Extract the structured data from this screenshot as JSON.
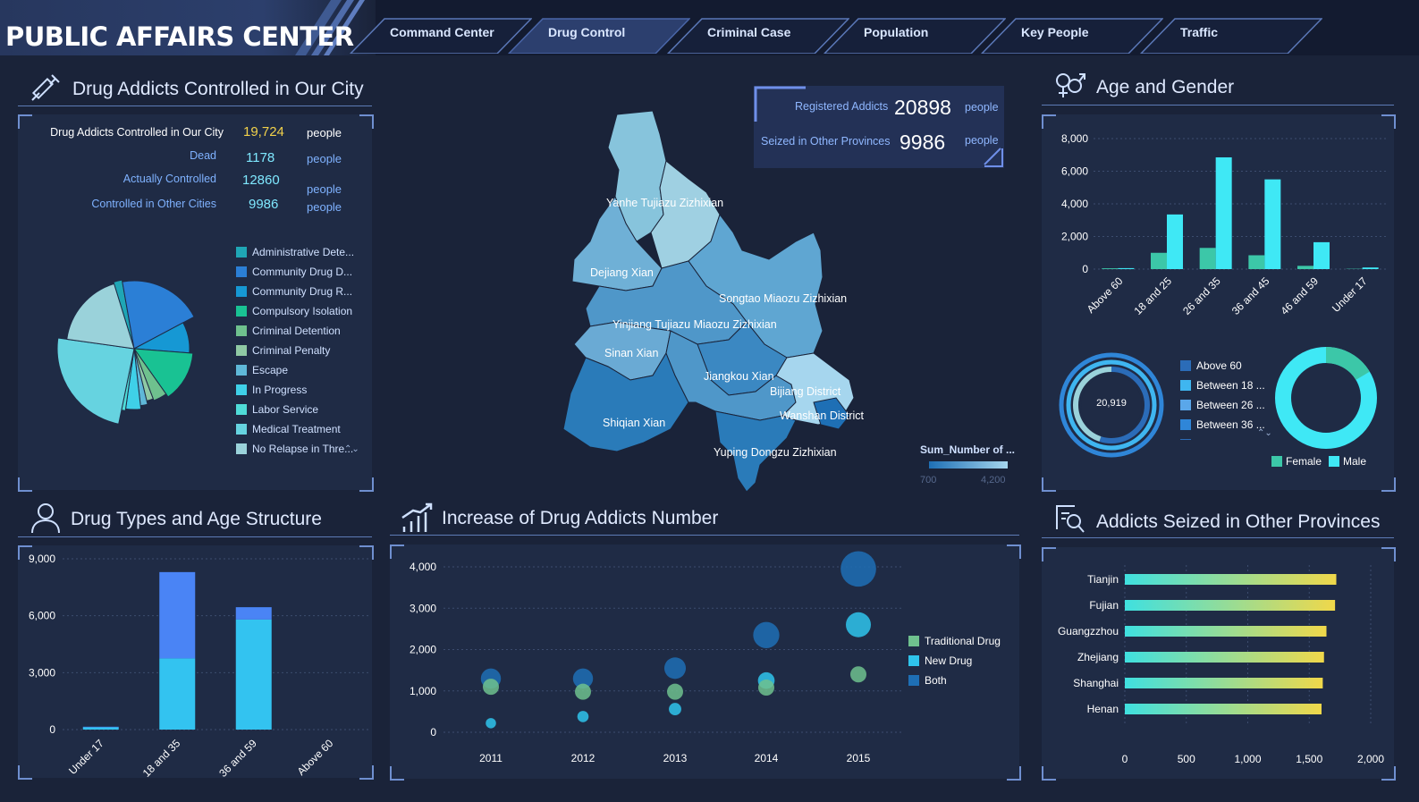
{
  "header": {
    "title": "PUBLIC AFFAIRS CENTER",
    "tabs": [
      {
        "label": "Command Center",
        "active": false
      },
      {
        "label": "Drug Control",
        "active": true
      },
      {
        "label": "Criminal Case",
        "active": false
      },
      {
        "label": "Population",
        "active": false
      },
      {
        "label": "Key People",
        "active": false
      },
      {
        "label": "Traffic",
        "active": false
      }
    ]
  },
  "controlled": {
    "title": "Drug Addicts Controlled in Our City",
    "icon": "syringe-icon",
    "stats": [
      {
        "label": "Drug Addicts Controlled in Our City",
        "value": "19,724",
        "unit": "people"
      },
      {
        "label": "Dead",
        "value": "1178",
        "unit": "people"
      },
      {
        "label": "Actually Controlled",
        "value": "12860",
        "unit": "people"
      },
      {
        "label": "Controlled in Other Cities",
        "value": "9986",
        "unit": "people"
      }
    ],
    "legend": [
      {
        "label": "Administrative Dete...",
        "color": "#1fa6b5"
      },
      {
        "label": "Community Drug D...",
        "color": "#2b7fd6"
      },
      {
        "label": "Community Drug R...",
        "color": "#1698d4"
      },
      {
        "label": "Compulsory Isolation",
        "color": "#19c293"
      },
      {
        "label": "Criminal Detention",
        "color": "#6fc18e"
      },
      {
        "label": "Criminal Penalty",
        "color": "#8fc9a4"
      },
      {
        "label": "Escape",
        "color": "#5fb8d8"
      },
      {
        "label": "In Progress",
        "color": "#3fd0e8"
      },
      {
        "label": "Labor Service",
        "color": "#4fdcd8"
      },
      {
        "label": "Medical Treatment",
        "color": "#66d3e0"
      },
      {
        "label": "No Relapse in Thre...",
        "color": "#9ad2da"
      }
    ]
  },
  "map": {
    "registered_label": "Registered Addicts",
    "registered_value": "20898",
    "registered_unit": "people",
    "seized_label": "Seized in Other Provinces",
    "seized_value": "9986",
    "seized_unit": "people",
    "legend_title": "Sum_Number of ...",
    "legend_min": "700",
    "legend_max": "4,200",
    "regions": [
      "Yanhe Tujiazu Zizhixian",
      "Dejiang Xian",
      "Songtao Miaozu Zizhixian",
      "Yinjiang Tujiazu Miaozu Zizhixian",
      "Sinan Xian",
      "Jiangkou Xian",
      "Bijiang District",
      "Wanshan District",
      "Shiqian Xian",
      "Yuping Dongzu Zizhixian"
    ]
  },
  "age_gender": {
    "title": "Age and Gender",
    "icon": "gender-icon",
    "total": "20,919",
    "legend": [
      {
        "label": "Above 60",
        "color": "#2b6cb8"
      },
      {
        "label": "Between 18 ...",
        "color": "#3fb6f0"
      },
      {
        "label": "Between 26 ...",
        "color": "#5aa7ea"
      },
      {
        "label": "Between 36 ...",
        "color": "#2f86d8"
      }
    ],
    "gender_legend": [
      {
        "label": "Female",
        "color": "#3cc7a8"
      },
      {
        "label": "Male",
        "color": "#3fe8f5"
      }
    ]
  },
  "drug_types": {
    "title": "Drug Types and Age Structure",
    "icon": "person-icon"
  },
  "increase": {
    "title": "Increase of Drug Addicts Number",
    "icon": "bar-growth-icon"
  },
  "seized": {
    "title": "Addicts Seized in Other Provinces",
    "icon": "search-doc-icon"
  },
  "chart_data": [
    {
      "id": "status-pie",
      "type": "pie",
      "categories": [
        "Administrative Dete...",
        "Community Drug D...",
        "Community Drug R...",
        "Compulsory Isolation",
        "Criminal Detention",
        "Criminal Penalty",
        "Escape",
        "In Progress",
        "Labor Service",
        "Medical Treatment",
        "No Relapse in Thre..."
      ],
      "values": [
        2,
        20,
        9,
        14,
        4,
        2,
        2,
        4,
        1,
        24,
        18
      ]
    },
    {
      "id": "age-gender-bar",
      "type": "bar",
      "categories": [
        "Above 60",
        "18 and 25",
        "26 and 35",
        "36 and 45",
        "46 and 59",
        "Under 17"
      ],
      "series": [
        {
          "name": "Female",
          "values": [
            50,
            1000,
            1300,
            850,
            200,
            20
          ]
        },
        {
          "name": "Male",
          "values": [
            60,
            3350,
            6850,
            5500,
            1650,
            100
          ]
        }
      ],
      "ylim": [
        0,
        8000
      ],
      "yticks": [
        "0",
        "2,000",
        "4,000",
        "6,000",
        "8,000"
      ]
    },
    {
      "id": "drug-type-age-bar",
      "type": "bar",
      "stacked": true,
      "categories": [
        "Under 17",
        "18 and 35",
        "36 and 59",
        "Above 60"
      ],
      "series": [
        {
          "values": [
            120,
            3750,
            5800,
            0
          ]
        },
        {
          "values": [
            30,
            4550,
            650,
            0
          ]
        }
      ],
      "ylim": [
        0,
        9000
      ],
      "yticks": [
        "0",
        "3,000",
        "6,000",
        "9,000"
      ]
    },
    {
      "id": "increase-bubble",
      "type": "scatter",
      "x": [
        "2011",
        "2012",
        "2013",
        "2014",
        "2015"
      ],
      "series": [
        {
          "name": "Traditional Drug",
          "color": "#6fc18e",
          "values": [
            1100,
            980,
            980,
            1080,
            1400
          ]
        },
        {
          "name": "New Drug",
          "color": "#2fc4ec",
          "values": [
            220,
            380,
            560,
            1250,
            2600
          ]
        },
        {
          "name": "Both",
          "color": "#1e6fb5",
          "values": [
            1300,
            1300,
            1550,
            2350,
            3950
          ]
        }
      ],
      "ylim": [
        0,
        4000
      ],
      "yticks": [
        "0",
        "1,000",
        "2,000",
        "3,000",
        "4,000"
      ]
    },
    {
      "id": "seized-hbar",
      "type": "bar",
      "orientation": "horizontal",
      "categories": [
        "Tianjin",
        "Fujian",
        "Guangzzhou",
        "Zhejiang",
        "Shanghai",
        "Henan"
      ],
      "values": [
        1720,
        1710,
        1640,
        1620,
        1610,
        1600
      ],
      "xlim": [
        0,
        2000
      ],
      "xticks": [
        "0",
        "500",
        "1,000",
        "1,500",
        "2,000"
      ]
    }
  ]
}
